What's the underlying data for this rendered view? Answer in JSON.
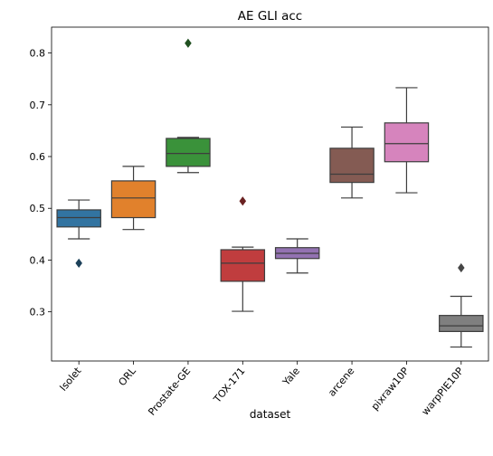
{
  "chart_data": {
    "type": "box",
    "title": "AE GLI acc",
    "xlabel": "dataset",
    "ylabel": "",
    "ylim": [
      0.205,
      0.85
    ],
    "yticks": [
      0.3,
      0.4,
      0.5,
      0.6,
      0.7,
      0.8
    ],
    "ytick_labels": [
      "0.3",
      "0.4",
      "0.5",
      "0.6",
      "0.7",
      "0.8"
    ],
    "grid": false,
    "categories": [
      "Isolet",
      "ORL",
      "Prostate-GE",
      "TOX-171",
      "Yale",
      "arcene",
      "pixraw10P",
      "warpPIE10P"
    ],
    "boxes": [
      {
        "category": "Isolet",
        "whisker_low": 0.441,
        "q1": 0.464,
        "median": 0.482,
        "q3": 0.497,
        "whisker_high": 0.516,
        "outliers": [
          0.394
        ],
        "color": "#3274a1"
      },
      {
        "category": "ORL",
        "whisker_low": 0.459,
        "q1": 0.482,
        "median": 0.52,
        "q3": 0.553,
        "whisker_high": 0.581,
        "outliers": [],
        "color": "#e1812c"
      },
      {
        "category": "Prostate-GE",
        "whisker_low": 0.569,
        "q1": 0.581,
        "median": 0.606,
        "q3": 0.635,
        "whisker_high": 0.637,
        "outliers": [
          0.819
        ],
        "color": "#3a923a"
      },
      {
        "category": "TOX-171",
        "whisker_low": 0.301,
        "q1": 0.359,
        "median": 0.394,
        "q3": 0.42,
        "whisker_high": 0.425,
        "outliers": [
          0.514
        ],
        "color": "#c03d3e"
      },
      {
        "category": "Yale",
        "whisker_low": 0.375,
        "q1": 0.403,
        "median": 0.413,
        "q3": 0.424,
        "whisker_high": 0.441,
        "outliers": [],
        "color": "#9372b2"
      },
      {
        "category": "arcene",
        "whisker_low": 0.52,
        "q1": 0.55,
        "median": 0.566,
        "q3": 0.616,
        "whisker_high": 0.657,
        "outliers": [],
        "color": "#845b53"
      },
      {
        "category": "pixraw10P",
        "whisker_low": 0.53,
        "q1": 0.59,
        "median": 0.625,
        "q3": 0.665,
        "whisker_high": 0.733,
        "outliers": [],
        "color": "#d684bd"
      },
      {
        "category": "warpPIE10P",
        "whisker_low": 0.232,
        "q1": 0.262,
        "median": 0.273,
        "q3": 0.293,
        "whisker_high": 0.33,
        "outliers": [
          0.385
        ],
        "color": "#7f7f7f"
      }
    ]
  }
}
